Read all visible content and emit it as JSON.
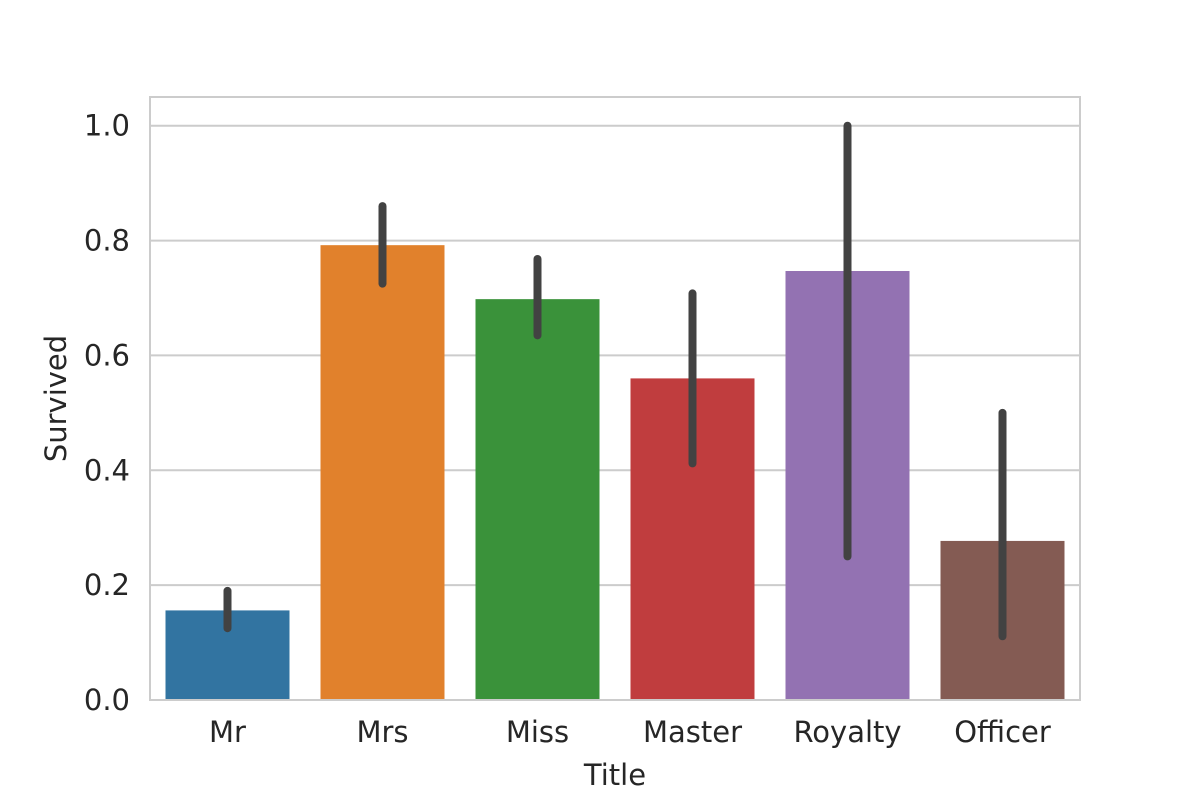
{
  "chart_data": {
    "type": "bar",
    "title": "",
    "xlabel": "Title",
    "ylabel": "Survived",
    "ylim": [
      0,
      1.05
    ],
    "yticks": [
      0.0,
      0.2,
      0.4,
      0.6,
      0.8,
      1.0
    ],
    "ytick_labels": [
      "0.0",
      "0.2",
      "0.4",
      "0.6",
      "0.8",
      "1.0"
    ],
    "grid": true,
    "categories": [
      "Mr",
      "Mrs",
      "Miss",
      "Master",
      "Royalty",
      "Officer"
    ],
    "values": [
      0.156,
      0.792,
      0.698,
      0.56,
      0.747,
      0.277
    ],
    "error_bars": [
      [
        0.125,
        0.19
      ],
      [
        0.725,
        0.86
      ],
      [
        0.635,
        0.768
      ],
      [
        0.412,
        0.708
      ],
      [
        0.25,
        1.0
      ],
      [
        0.111,
        0.5
      ]
    ],
    "colors": [
      "#3274a1",
      "#e1812c",
      "#3a923a",
      "#c03d3e",
      "#9372b2",
      "#845b53"
    ],
    "error_color": "#424242",
    "grid_color": "#cccccc",
    "frame_color": "#cccccc"
  }
}
